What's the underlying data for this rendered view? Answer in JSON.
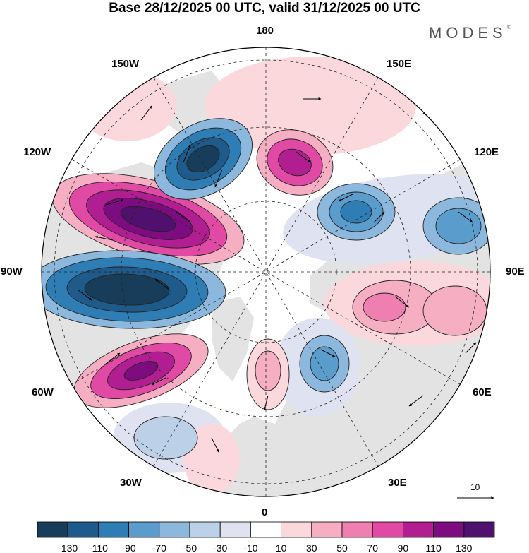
{
  "title": "Base 28/12/2025 00 UTC, valid 31/12/2025 00 UTC",
  "brand": "MODES",
  "brand_mark": "©",
  "longitude_labels": {
    "n180": "180",
    "w150": "150W",
    "e150": "150E",
    "w120": "120W",
    "e120": "120E",
    "w90": "90W",
    "e90": "90E",
    "w60": "60W",
    "e60": "60E",
    "w30": "30W",
    "e30": "30E",
    "s0": "0"
  },
  "reference_vector_label": "10",
  "colorbar": {
    "colors": [
      "#173d5b",
      "#1e5b8a",
      "#2f7db5",
      "#5a9ccb",
      "#8bb8dc",
      "#bcd0e8",
      "#e0e2f0",
      "#ffffff",
      "#fad8dc",
      "#f5aec2",
      "#ee7fb0",
      "#e04aa5",
      "#b01e92",
      "#7d0c80",
      "#4f106e"
    ],
    "labels": [
      "-130",
      "-110",
      "-90",
      "-70",
      "-50",
      "-30",
      "-10",
      "10",
      "30",
      "50",
      "70",
      "90",
      "110",
      "130"
    ]
  },
  "map_palette": {
    "land": "#e3e3e3",
    "neg_weak": "#dfe2f0",
    "neg_mid": "#8bb8dc",
    "neg_strong": "#2f7db5",
    "neg_core": "#173d5b",
    "pos_weak": "#fad8dc",
    "pos_mid": "#f5aec2",
    "pos_strong": "#e04aa5",
    "pos_core": "#7d0c80"
  }
}
